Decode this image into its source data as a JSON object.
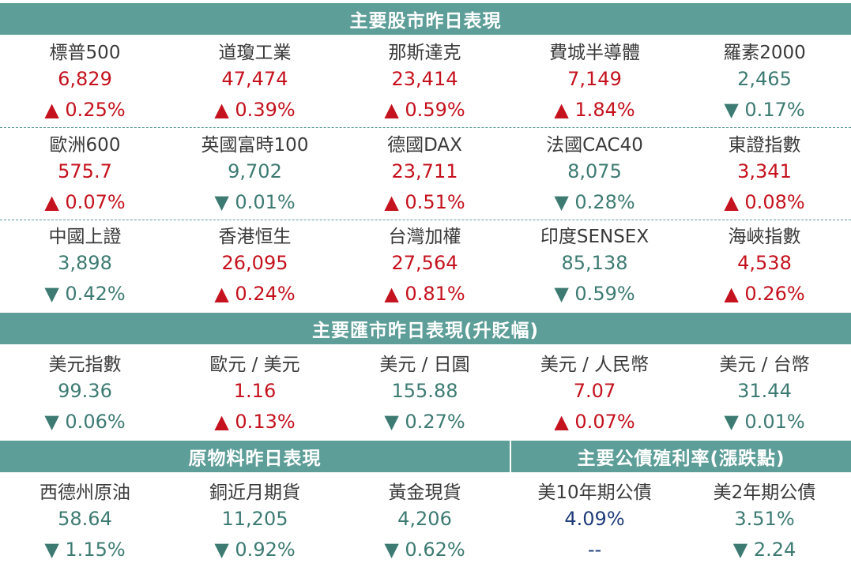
{
  "stocks": {
    "title": "主要股市昨日表現",
    "rows": [
      [
        {
          "name": "標普500",
          "value": "6,829",
          "change": "▲ 0.25%",
          "dir": "up"
        },
        {
          "name": "道瓊工業",
          "value": "47,474",
          "change": "▲ 0.39%",
          "dir": "up"
        },
        {
          "name": "那斯達克",
          "value": "23,414",
          "change": "▲ 0.59%",
          "dir": "up"
        },
        {
          "name": "費城半導體",
          "value": "7,149",
          "change": "▲ 1.84%",
          "dir": "up"
        },
        {
          "name": "羅素2000",
          "value": "2,465",
          "change": "▼ 0.17%",
          "dir": "down"
        }
      ],
      [
        {
          "name": "歐洲600",
          "value": "575.7",
          "change": "▲ 0.07%",
          "dir": "up"
        },
        {
          "name": "英國富時100",
          "value": "9,702",
          "change": "▼ 0.01%",
          "dir": "down"
        },
        {
          "name": "德國DAX",
          "value": "23,711",
          "change": "▲ 0.51%",
          "dir": "up"
        },
        {
          "name": "法國CAC40",
          "value": "8,075",
          "change": "▼ 0.28%",
          "dir": "down"
        },
        {
          "name": "東證指數",
          "value": "3,341",
          "change": "▲ 0.08%",
          "dir": "up"
        }
      ],
      [
        {
          "name": "中國上證",
          "value": "3,898",
          "change": "▼ 0.42%",
          "dir": "down"
        },
        {
          "name": "香港恒生",
          "value": "26,095",
          "change": "▲ 0.24%",
          "dir": "up"
        },
        {
          "name": "台灣加權",
          "value": "27,564",
          "change": "▲ 0.81%",
          "dir": "up"
        },
        {
          "name": "印度SENSEX",
          "value": "85,138",
          "change": "▼ 0.59%",
          "dir": "down"
        },
        {
          "name": "海峽指數",
          "value": "4,538",
          "change": "▲ 0.26%",
          "dir": "up"
        }
      ]
    ]
  },
  "fx": {
    "title": "主要匯市昨日表現(升貶幅)",
    "row": [
      {
        "name": "美元指數",
        "value": "99.36",
        "change": "▼ 0.06%",
        "dir": "down"
      },
      {
        "name": "歐元 / 美元",
        "value": "1.16",
        "change": "▲ 0.13%",
        "dir": "up"
      },
      {
        "name": "美元 / 日圓",
        "value": "155.88",
        "change": "▼ 0.27%",
        "dir": "down"
      },
      {
        "name": "美元 / 人民幣",
        "value": "7.07",
        "change": "▲ 0.07%",
        "dir": "up"
      },
      {
        "name": "美元 / 台幣",
        "value": "31.44",
        "change": "▼ 0.01%",
        "dir": "down"
      }
    ]
  },
  "commodities": {
    "title": "原物料昨日表現",
    "row": [
      {
        "name": "西德州原油",
        "value": "58.64",
        "change": "▼ 1.15%",
        "dir": "down"
      },
      {
        "name": "銅近月期貨",
        "value": "11,205",
        "change": "▼ 0.92%",
        "dir": "down"
      },
      {
        "name": "黃金現貨",
        "value": "4,206",
        "change": "▼ 0.62%",
        "dir": "down"
      }
    ]
  },
  "bonds": {
    "title": "主要公債殖利率(漲跌點)",
    "row": [
      {
        "name": "美10年期公債",
        "value": "4.09%",
        "change": "--",
        "dir": "blue"
      },
      {
        "name": "美2年期公債",
        "value": "3.51%",
        "change": "▼ 2.24",
        "dir": "down"
      }
    ]
  },
  "colors": {
    "header": "#5e9e98",
    "up": "#c4121e",
    "down": "#3d7b72",
    "neutral": "#1f3d7a"
  }
}
